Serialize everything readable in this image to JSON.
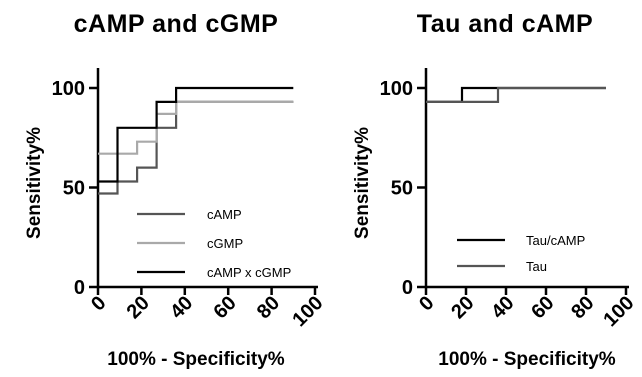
{
  "chart_data": [
    {
      "type": "line",
      "title": "cAMP and cGMP",
      "xlabel": "100% - Specificity%",
      "ylabel": "Sensitivity%",
      "xlim": [
        0,
        100
      ],
      "ylim": [
        0,
        100
      ],
      "x_ticks": [
        "0",
        "20",
        "40",
        "60",
        "80",
        "100"
      ],
      "y_ticks": [
        "0",
        "50",
        "100"
      ],
      "legend_position": "bottom-right",
      "series": [
        {
          "name": "cAMP",
          "color": "#555555",
          "points": [
            [
              0,
              47
            ],
            [
              9,
              47
            ],
            [
              9,
              53
            ],
            [
              18,
              53
            ],
            [
              18,
              60
            ],
            [
              27,
              60
            ],
            [
              27,
              80
            ],
            [
              36,
              80
            ],
            [
              36,
              93
            ],
            [
              90,
              93
            ]
          ]
        },
        {
          "name": "cGMP",
          "color": "#a9a9a9",
          "points": [
            [
              0,
              67
            ],
            [
              18,
              67
            ],
            [
              18,
              73
            ],
            [
              27,
              73
            ],
            [
              27,
              87
            ],
            [
              36,
              87
            ],
            [
              36,
              93
            ],
            [
              90,
              93
            ]
          ]
        },
        {
          "name": "cAMP x cGMP",
          "color": "#000000",
          "points": [
            [
              0,
              53
            ],
            [
              9,
              53
            ],
            [
              9,
              80
            ],
            [
              27,
              80
            ],
            [
              27,
              93
            ],
            [
              36,
              93
            ],
            [
              36,
              100
            ],
            [
              90,
              100
            ]
          ]
        }
      ]
    },
    {
      "type": "line",
      "title": "Tau and cAMP",
      "xlabel": "100% - Specificity%",
      "ylabel": "Sensitivity%",
      "xlim": [
        0,
        100
      ],
      "ylim": [
        0,
        100
      ],
      "x_ticks": [
        "0",
        "20",
        "40",
        "60",
        "80",
        "100"
      ],
      "y_ticks": [
        "0",
        "50",
        "100"
      ],
      "legend_position": "bottom-right",
      "series": [
        {
          "name": "Tau/cAMP",
          "color": "#000000",
          "points": [
            [
              0,
              93
            ],
            [
              18,
              93
            ],
            [
              18,
              100
            ],
            [
              90,
              100
            ]
          ]
        },
        {
          "name": "Tau",
          "color": "#555555",
          "points": [
            [
              0,
              93
            ],
            [
              36,
              93
            ],
            [
              36,
              100
            ],
            [
              90,
              100
            ]
          ]
        }
      ]
    }
  ]
}
